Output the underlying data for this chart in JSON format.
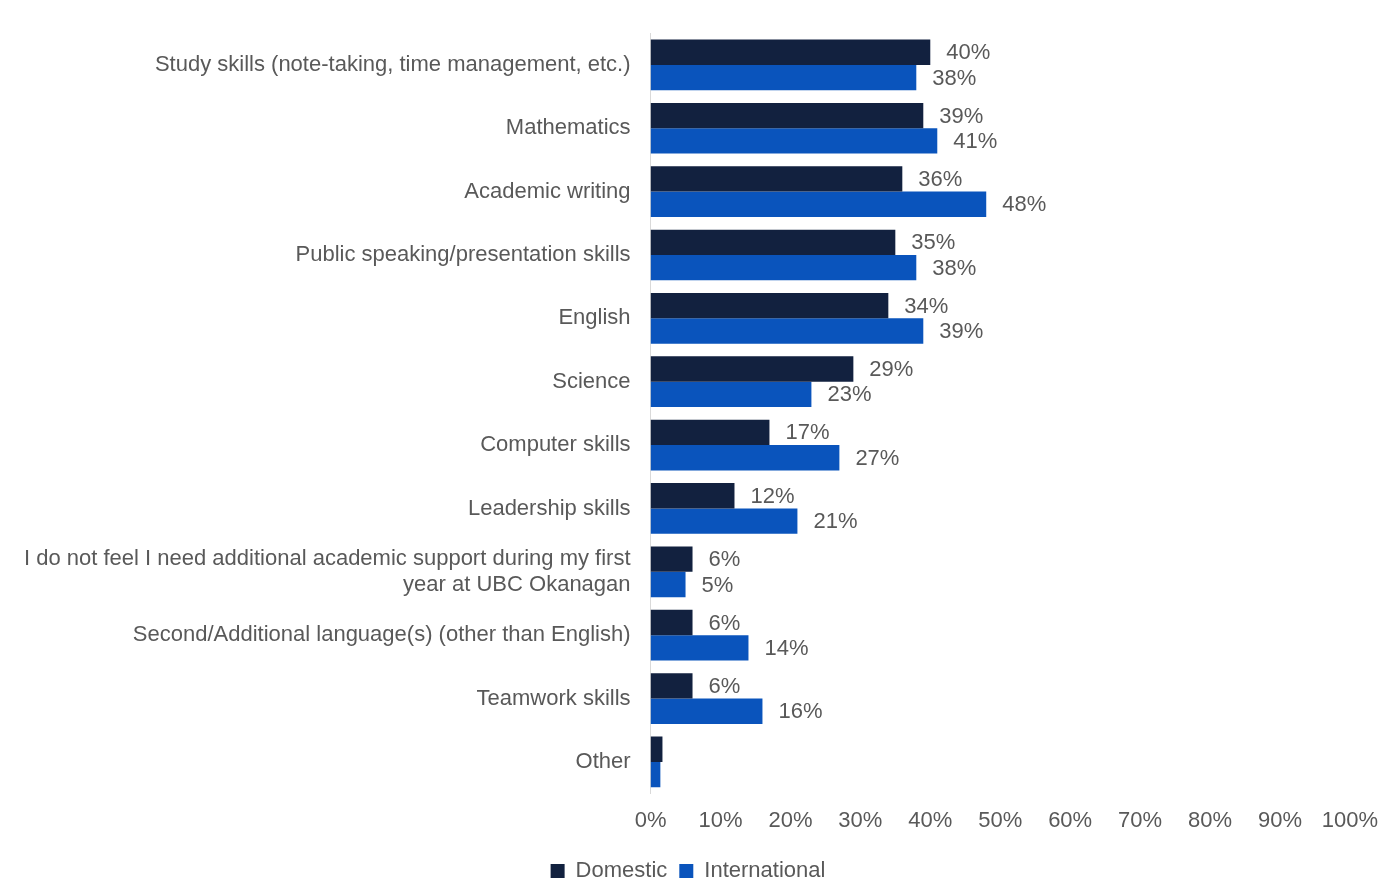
{
  "chart_data": {
    "type": "bar",
    "orientation": "horizontal",
    "categories": [
      "Study skills (note-taking, time management, etc.)",
      "Mathematics",
      "Academic writing",
      "Public speaking/presentation skills",
      "English",
      "Science",
      "Computer skills",
      "Leadership skills",
      "I do not feel I need additional academic support during my first year at UBC Okanagan",
      "Second/Additional language(s) (other than English)",
      "Teamwork skills",
      "Other"
    ],
    "series": [
      {
        "name": "Domestic",
        "color": "#12213f",
        "values": [
          40,
          39,
          36,
          35,
          34,
          29,
          17,
          12,
          6,
          6,
          6,
          1.7
        ],
        "value_labels": [
          "40%",
          "39%",
          "36%",
          "35%",
          "34%",
          "29%",
          "17%",
          "12%",
          "6%",
          "6%",
          "6%",
          null
        ]
      },
      {
        "name": "International",
        "color": "#0a54bc",
        "values": [
          38,
          41,
          48,
          38,
          39,
          23,
          27,
          21,
          5,
          14,
          16,
          1.4
        ],
        "value_labels": [
          "38%",
          "41%",
          "48%",
          "38%",
          "39%",
          "23%",
          "27%",
          "21%",
          "5%",
          "14%",
          "16%",
          null
        ]
      }
    ],
    "xlim": [
      0,
      100
    ],
    "xticks": [
      {
        "value": 0,
        "label": "0%"
      },
      {
        "value": 10,
        "label": "10%"
      },
      {
        "value": 20,
        "label": "20%"
      },
      {
        "value": 30,
        "label": "30%"
      },
      {
        "value": 40,
        "label": "40%"
      },
      {
        "value": 50,
        "label": "50%"
      },
      {
        "value": 60,
        "label": "60%"
      },
      {
        "value": 70,
        "label": "70%"
      },
      {
        "value": 80,
        "label": "80%"
      },
      {
        "value": 90,
        "label": "90%"
      },
      {
        "value": 100,
        "label": "100%"
      }
    ],
    "grid": false,
    "legend": "bottom"
  }
}
